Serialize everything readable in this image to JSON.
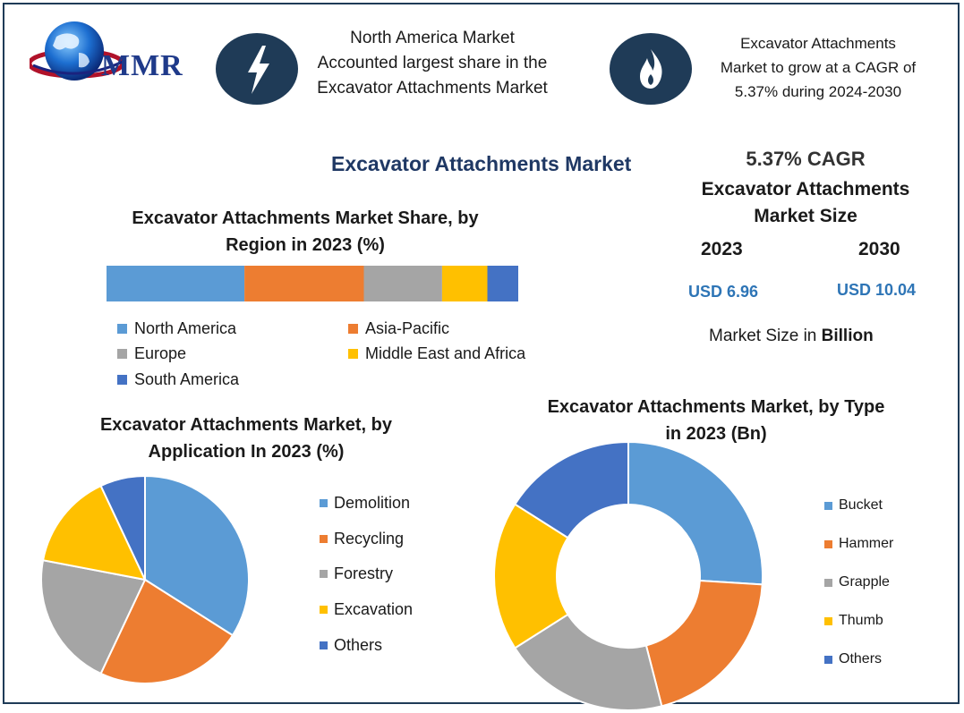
{
  "brand": {
    "logo_text": "MMR"
  },
  "header": {
    "left_text_lines": [
      "North America Market",
      "Accounted largest share in the",
      "Excavator Attachments Market"
    ],
    "right_text_lines": [
      "Excavator Attachments",
      "Market to grow at a CAGR of",
      "5.37% during 2024-2030"
    ]
  },
  "main_title": "Excavator Attachments Market",
  "market_size": {
    "cagr": "5.37% CAGR",
    "title_lines": [
      "Excavator Attachments",
      "Market Size"
    ],
    "year_2023": "2023",
    "year_2030": "2030",
    "value_2023": "USD 6.96",
    "value_2030": "USD 10.04",
    "note_prefix": "Market Size in ",
    "note_bold": "Billion"
  },
  "colors": {
    "blue": "#5b9bd5",
    "orange": "#ed7d31",
    "gray": "#a5a5a5",
    "yellow": "#ffc000",
    "darkblue": "#4472c4"
  },
  "chart_data": [
    {
      "type": "bar",
      "orientation": "horizontal-stacked",
      "title_lines": [
        "Excavator Attachments Market Share, by",
        "Region in 2023 (%)"
      ],
      "series": [
        {
          "name": "North America",
          "value": 33.5
        },
        {
          "name": "Asia-Pacific",
          "value": 29
        },
        {
          "name": "Europe",
          "value": 19
        },
        {
          "name": "Middle East and Africa",
          "value": 11
        },
        {
          "name": "South America",
          "value": 7.5
        }
      ]
    },
    {
      "type": "pie",
      "title_lines": [
        "Excavator Attachments Market, by",
        "Application In 2023 (%)"
      ],
      "categories": [
        "Demolition",
        "Recycling",
        "Forestry",
        "Excavation",
        "Others"
      ],
      "values": [
        34,
        23,
        21,
        15,
        7
      ]
    },
    {
      "type": "pie",
      "variant": "donut",
      "title_lines": [
        "Excavator Attachments Market, by Type",
        "in 2023 (Bn)"
      ],
      "categories": [
        "Bucket",
        "Hammer",
        "Grapple",
        "Thumb",
        "Others"
      ],
      "values": [
        26,
        20,
        20,
        18,
        16
      ]
    }
  ]
}
